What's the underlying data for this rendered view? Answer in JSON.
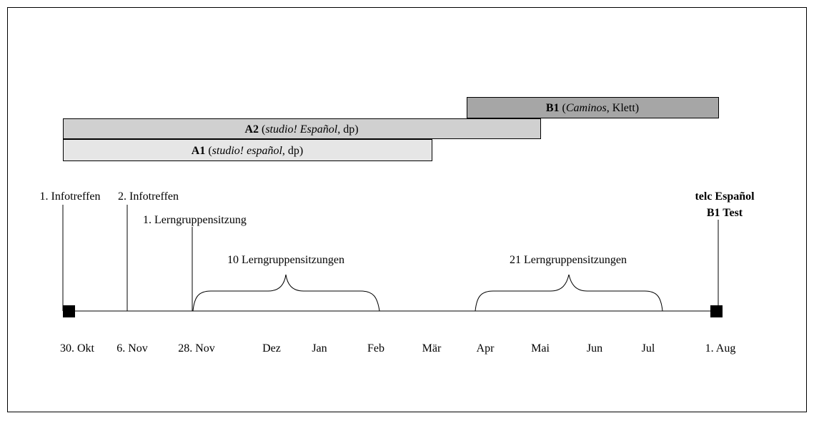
{
  "phases": [
    {
      "parts": [
        {
          "text": "B1",
          "style": "bold"
        },
        {
          "text": " (",
          "style": "normal"
        },
        {
          "text": "Caminos",
          "style": "italic"
        },
        {
          "text": ", Klett)",
          "style": "normal"
        }
      ]
    },
    {
      "parts": [
        {
          "text": "A2",
          "style": "bold"
        },
        {
          "text": " (",
          "style": "normal"
        },
        {
          "text": "studio! Español",
          "style": "italic"
        },
        {
          "text": ", dp)",
          "style": "normal"
        }
      ]
    },
    {
      "parts": [
        {
          "text": "A1",
          "style": "bold"
        },
        {
          "text": " (",
          "style": "normal"
        },
        {
          "text": "studio! español",
          "style": "italic"
        },
        {
          "text": ", dp)",
          "style": "normal"
        }
      ]
    }
  ],
  "milestones": [
    "1. Infotreffen",
    "2. Infotreffen",
    "1. Lerngruppensitzung"
  ],
  "exam": [
    "telc Español",
    "B1 Test"
  ],
  "spans": [
    "10 Lerngruppensitzungen",
    "21 Lerngruppensitzungen"
  ],
  "timeline_labels": [
    "30. Okt",
    "6. Nov",
    "28. Nov",
    "Dez",
    "Jan",
    "Feb",
    "Mär",
    "Apr",
    "Mai",
    "Jun",
    "Jul",
    "1. Aug"
  ]
}
